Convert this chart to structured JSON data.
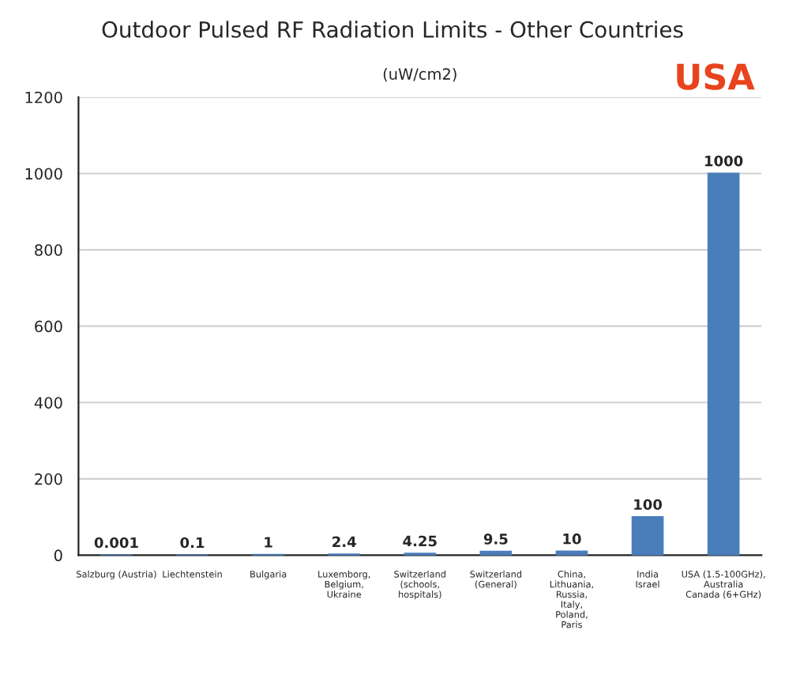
{
  "chart_data": {
    "type": "bar",
    "title": "Outdoor Pulsed RF Radiation Limits - Other Countries",
    "subtitle": "(uW/cm2)",
    "categories": [
      "Salzburg (Austria)",
      "Liechtenstein",
      "Bulgaria",
      "Luxemborg,\nBelgium,\nUkraine",
      "Switzerland\n(schools,\nhospitals)",
      "Switzerland\n(General)",
      "China,\nLithuania,\nRussia,\nItaly,\nPoland,\nParis",
      "India\nIsrael",
      "USA (1.5-100GHz),\nAustralia\nCanada (6+GHz)"
    ],
    "values": [
      0.001,
      0.1,
      1,
      2.4,
      4.25,
      9.5,
      10,
      100,
      1000
    ],
    "value_labels": [
      "0.001",
      "0.1",
      "1",
      "2.4",
      "4.25",
      "9.5",
      "10",
      "100",
      "1000"
    ],
    "color": "#4a7ebb",
    "ylim": [
      0,
      1200
    ],
    "yticks": [
      0,
      200,
      400,
      600,
      800,
      1000,
      1200
    ],
    "grid": "y",
    "annotations": [
      "USA"
    ]
  }
}
